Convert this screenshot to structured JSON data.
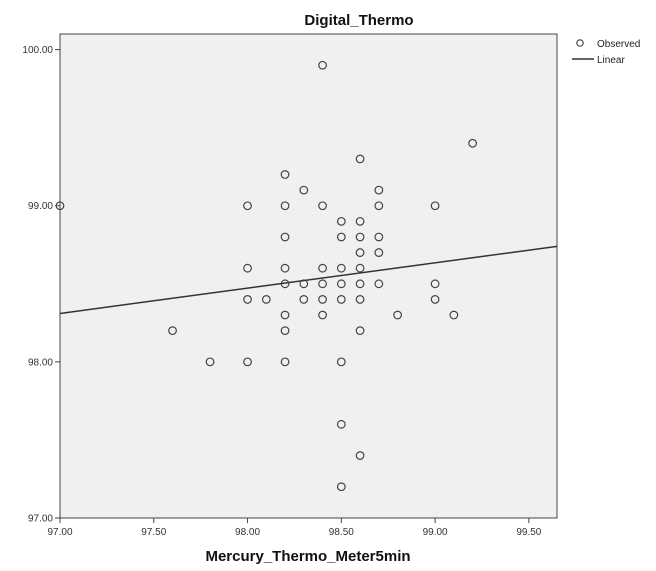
{
  "chart_data": {
    "type": "scatter",
    "title": "Digital_Thermo",
    "xlabel": "Mercury_Thermo_Meter5min",
    "ylabel": "",
    "xlim": [
      97.0,
      99.65
    ],
    "ylim": [
      97.0,
      100.1
    ],
    "x_ticks": [
      "97.00",
      "97.50",
      "98.00",
      "98.50",
      "99.00",
      "99.50"
    ],
    "y_ticks": [
      "97.00",
      "98.00",
      "99.00",
      "100.00"
    ],
    "grid": false,
    "legend_position": "top-right",
    "legend": [
      {
        "label": "Observed",
        "marker": "circle"
      },
      {
        "label": "Linear",
        "marker": "line"
      }
    ],
    "series": [
      {
        "name": "Observed",
        "points": [
          [
            97.0,
            99.0
          ],
          [
            97.6,
            98.2
          ],
          [
            97.8,
            98.0
          ],
          [
            98.0,
            99.0
          ],
          [
            98.0,
            98.6
          ],
          [
            98.0,
            98.4
          ],
          [
            98.0,
            98.0
          ],
          [
            98.1,
            98.4
          ],
          [
            98.2,
            99.2
          ],
          [
            98.2,
            99.0
          ],
          [
            98.2,
            98.8
          ],
          [
            98.2,
            98.6
          ],
          [
            98.2,
            98.5
          ],
          [
            98.2,
            98.3
          ],
          [
            98.2,
            98.2
          ],
          [
            98.2,
            98.0
          ],
          [
            98.3,
            99.1
          ],
          [
            98.3,
            98.5
          ],
          [
            98.3,
            98.4
          ],
          [
            98.4,
            99.9
          ],
          [
            98.4,
            99.0
          ],
          [
            98.4,
            98.6
          ],
          [
            98.4,
            98.5
          ],
          [
            98.4,
            98.4
          ],
          [
            98.4,
            98.3
          ],
          [
            98.5,
            98.9
          ],
          [
            98.5,
            98.8
          ],
          [
            98.5,
            98.6
          ],
          [
            98.5,
            98.5
          ],
          [
            98.5,
            98.4
          ],
          [
            98.5,
            98.0
          ],
          [
            98.5,
            97.6
          ],
          [
            98.5,
            97.2
          ],
          [
            98.6,
            99.3
          ],
          [
            98.6,
            98.9
          ],
          [
            98.6,
            98.8
          ],
          [
            98.6,
            98.7
          ],
          [
            98.6,
            98.6
          ],
          [
            98.6,
            98.5
          ],
          [
            98.6,
            98.4
          ],
          [
            98.6,
            98.2
          ],
          [
            98.6,
            97.4
          ],
          [
            98.7,
            99.1
          ],
          [
            98.7,
            99.0
          ],
          [
            98.7,
            98.8
          ],
          [
            98.7,
            98.7
          ],
          [
            98.7,
            98.5
          ],
          [
            98.8,
            98.3
          ],
          [
            99.0,
            99.0
          ],
          [
            99.0,
            98.5
          ],
          [
            99.0,
            98.4
          ],
          [
            99.1,
            98.3
          ],
          [
            99.2,
            99.4
          ]
        ]
      },
      {
        "name": "Linear",
        "line": [
          [
            97.0,
            98.31
          ],
          [
            99.65,
            98.74
          ]
        ]
      }
    ]
  }
}
